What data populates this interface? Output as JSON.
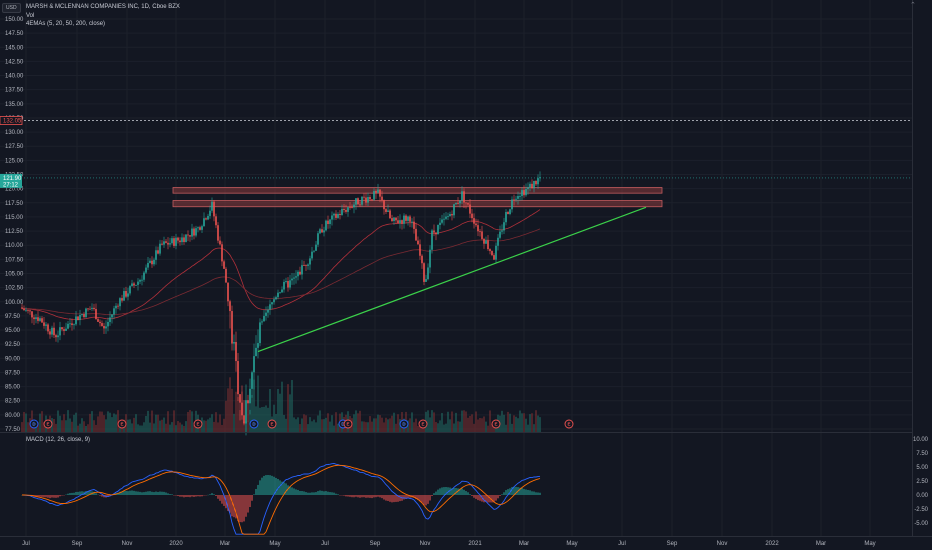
{
  "header": {
    "currency": "USD",
    "symbol_line": "MARSH & MCLENNAN COMPANIES INC, 1D, Cboe BZX",
    "volume_label": "Vol",
    "ema_label": "4EMAs (5, 20, 50, 200, close)",
    "collapse": "⌃"
  },
  "macd": {
    "label": "MACD (12, 26, close, 9)",
    "axis_labels": [
      "10.00",
      "7.50",
      "5.00",
      "2.50",
      "0.00",
      "-2.50",
      "-5.00"
    ]
  },
  "price_axis": {
    "labels": [
      "150.00",
      "147.50",
      "145.00",
      "142.50",
      "140.00",
      "137.50",
      "135.00",
      "132.50",
      "130.00",
      "127.50",
      "125.00",
      "122.50",
      "120.00",
      "117.50",
      "115.00",
      "112.50",
      "110.00",
      "107.50",
      "105.00",
      "102.50",
      "100.00",
      "97.50",
      "95.00",
      "92.50",
      "90.00",
      "87.50",
      "85.00",
      "82.50",
      "80.00",
      "77.50"
    ],
    "alert_tag": "132.05",
    "price_tag": "121.90",
    "countdown_tag": "27:12"
  },
  "time_axis": {
    "labels": [
      "Jul",
      "Sep",
      "Nov",
      "2020",
      "Mar",
      "May",
      "Jul",
      "Sep",
      "Nov",
      "2021",
      "Mar",
      "May",
      "Jul",
      "Sep",
      "Nov",
      "2022",
      "Mar",
      "May"
    ]
  },
  "events": [
    {
      "kind": "dividend",
      "letter": "D",
      "price_x": 34
    },
    {
      "kind": "earnings",
      "letter": "E",
      "price_x": 48
    },
    {
      "kind": "earnings",
      "letter": "E",
      "price_x": 122
    },
    {
      "kind": "earnings",
      "letter": "E",
      "price_x": 198
    },
    {
      "kind": "dividend",
      "letter": "D",
      "price_x": 254
    },
    {
      "kind": "earnings",
      "letter": "E",
      "price_x": 272
    },
    {
      "kind": "dividend",
      "letter": "D",
      "price_x": 343
    },
    {
      "kind": "earnings",
      "letter": "E",
      "price_x": 348
    },
    {
      "kind": "dividend",
      "letter": "D",
      "price_x": 404
    },
    {
      "kind": "earnings",
      "letter": "E",
      "price_x": 423
    },
    {
      "kind": "earnings",
      "letter": "E",
      "price_x": 496
    },
    {
      "kind": "earnings",
      "letter": "E",
      "price_x": 569
    }
  ],
  "colors": {
    "up": "#26a69a",
    "down": "#ef5350",
    "trendline": "#3bd14a",
    "zone": "#8a3b3d",
    "ema_red": "#b0303a",
    "macd_blue": "#2962ff",
    "macd_orange": "#ff6d00"
  },
  "chart_data": {
    "type": "candlestick",
    "title": "MARSH & MCLENNAN COMPANIES INC, 1D, Cboe BZX",
    "ylim": [
      77.5,
      150
    ],
    "resistance_zones": [
      [
        119.2,
        120.2
      ],
      [
        116.8,
        117.9
      ]
    ],
    "trendline": {
      "start": [
        "Apr 2020",
        91.2
      ],
      "end": [
        "Aug 2021",
        116.7
      ]
    },
    "price_path": [
      {
        "x": "Jul 2019",
        "y": 99
      },
      {
        "x": "Aug 2019",
        "y": 95
      },
      {
        "x": "Sep 2019",
        "y": 98
      },
      {
        "x": "Oct 2019",
        "y": 96
      },
      {
        "x": "Nov 2019",
        "y": 102
      },
      {
        "x": "Dec 2019",
        "y": 108
      },
      {
        "x": "Jan 2020",
        "y": 111
      },
      {
        "x": "Feb 2020",
        "y": 117
      },
      {
        "x": "Mar 2020",
        "y": 108
      },
      {
        "x": "Mar 2020",
        "y": 78
      },
      {
        "x": "Apr 2020",
        "y": 92
      },
      {
        "x": "May 2020",
        "y": 100
      },
      {
        "x": "Jun 2020",
        "y": 108
      },
      {
        "x": "Jul 2020",
        "y": 112
      },
      {
        "x": "Aug 2020",
        "y": 117
      },
      {
        "x": "Sep 2020",
        "y": 119
      },
      {
        "x": "Oct 2020",
        "y": 113
      },
      {
        "x": "Nov 2020",
        "y": 103
      },
      {
        "x": "Nov 2020",
        "y": 113
      },
      {
        "x": "Dec 2020",
        "y": 118
      },
      {
        "x": "Jan 2021",
        "y": 113
      },
      {
        "x": "Feb 2021",
        "y": 110
      },
      {
        "x": "Mar 2021",
        "y": 120
      },
      {
        "x": "Apr 2021",
        "y": 121.9
      }
    ]
  }
}
